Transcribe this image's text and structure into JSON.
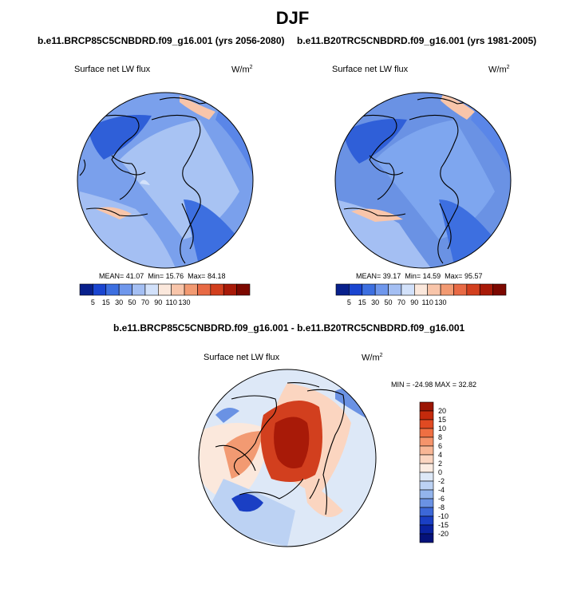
{
  "title": "DJF",
  "panels": [
    {
      "case": "b.e11.BRCP85C5CNBDRD.f09_g16.001 (yrs 2056-2080)",
      "variable": "Surface net LW flux",
      "units": "W/m",
      "units_exp": "2",
      "mean_label": "MEAN=",
      "mean": "41.07",
      "min_label": "Min=",
      "min": "15.76",
      "max_label": "Max=",
      "max": "84.18"
    },
    {
      "case": "b.e11.B20TRC5CNBDRD.f09_g16.001 (yrs 1981-2005)",
      "variable": "Surface net LW flux",
      "units": "W/m",
      "units_exp": "2",
      "mean_label": "MEAN=",
      "mean": "39.17",
      "min_label": "Min=",
      "min": "14.59",
      "max_label": "Max=",
      "max": "95.57"
    }
  ],
  "diff": {
    "title": "b.e11.BRCP85C5CNBDRD.f09_g16.001 - b.e11.B20TRC5CNBDRD.f09_g16.001",
    "variable": "Surface net LW flux",
    "units": "W/m",
    "units_exp": "2",
    "stats": "MIN = -24.98 MAX =  32.82"
  },
  "colorbar_h": {
    "labels": [
      "5",
      "15",
      "30",
      "50",
      "70",
      "90",
      "110",
      "130"
    ],
    "colors": [
      "#08208c",
      "#1a45d0",
      "#3d6fe0",
      "#6f97ec",
      "#a4bff3",
      "#d2e1fa",
      "#fbe8dc",
      "#f8c5aa",
      "#f29a72",
      "#e86a45",
      "#d23f1e",
      "#a81a08",
      "#7c0800"
    ]
  },
  "colorbar_v": {
    "labels": [
      "20",
      "15",
      "10",
      "8",
      "6",
      "4",
      "2",
      "0",
      "-2",
      "-4",
      "-6",
      "-8",
      "-10",
      "-15",
      "-20"
    ],
    "colors": [
      "#9b1503",
      "#c42a0c",
      "#e04a22",
      "#ef6f42",
      "#f5946b",
      "#f8b695",
      "#fbd5c0",
      "#fcece2",
      "#dde8f7",
      "#bcd2f3",
      "#93b4ec",
      "#6a92e4",
      "#3c68d8",
      "#1a3fc4",
      "#0a22a0",
      "#05127a"
    ]
  }
}
